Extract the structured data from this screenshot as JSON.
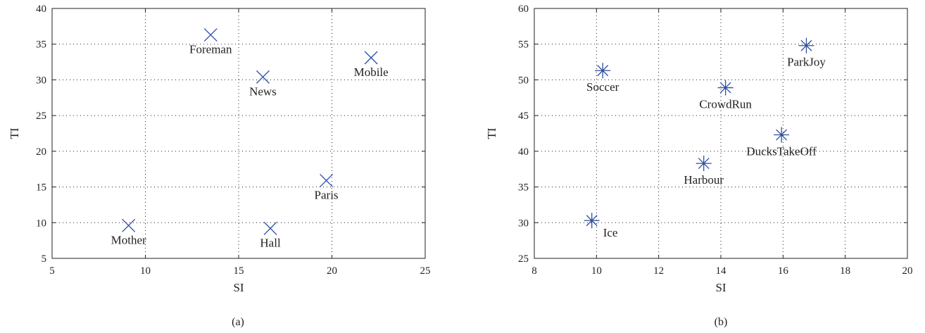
{
  "chart_data": [
    {
      "type": "scatter",
      "caption": "(a)",
      "xlabel": "SI",
      "ylabel": "TI",
      "xlim": [
        5,
        25
      ],
      "ylim": [
        5,
        40
      ],
      "xticks": [
        5,
        10,
        15,
        20,
        25
      ],
      "yticks": [
        5,
        10,
        15,
        20,
        25,
        30,
        35,
        40
      ],
      "grid": true,
      "marker": "x",
      "marker_color": "#2e4f9e",
      "points": [
        {
          "label": "Foreman",
          "x": 13.5,
          "y": 36.3,
          "label_pos": "below"
        },
        {
          "label": "News",
          "x": 16.3,
          "y": 30.4,
          "label_pos": "below"
        },
        {
          "label": "Mobile",
          "x": 22.1,
          "y": 33.1,
          "label_pos": "below"
        },
        {
          "label": "Paris",
          "x": 19.7,
          "y": 15.9,
          "label_pos": "below"
        },
        {
          "label": "Mother",
          "x": 9.1,
          "y": 9.6,
          "label_pos": "below"
        },
        {
          "label": "Hall",
          "x": 16.7,
          "y": 9.2,
          "label_pos": "below"
        }
      ]
    },
    {
      "type": "scatter",
      "caption": "(b)",
      "xlabel": "SI",
      "ylabel": "TI",
      "xlim": [
        8,
        20
      ],
      "ylim": [
        25,
        60
      ],
      "xticks": [
        8,
        10,
        12,
        14,
        16,
        18,
        20
      ],
      "yticks": [
        25,
        30,
        35,
        40,
        45,
        50,
        55,
        60
      ],
      "grid": true,
      "marker": "asterisk",
      "marker_color": "#2e4f9e",
      "points": [
        {
          "label": "ParkJoy",
          "x": 16.75,
          "y": 54.8,
          "label_pos": "below"
        },
        {
          "label": "Soccer",
          "x": 10.2,
          "y": 51.3,
          "label_pos": "below"
        },
        {
          "label": "CrowdRun",
          "x": 14.15,
          "y": 48.9,
          "label_pos": "below"
        },
        {
          "label": "DucksTakeOff",
          "x": 15.95,
          "y": 42.3,
          "label_pos": "below"
        },
        {
          "label": "Harbour",
          "x": 13.45,
          "y": 38.3,
          "label_pos": "below"
        },
        {
          "label": "Ice",
          "x": 9.85,
          "y": 30.3,
          "label_pos": "right-below"
        }
      ]
    }
  ]
}
